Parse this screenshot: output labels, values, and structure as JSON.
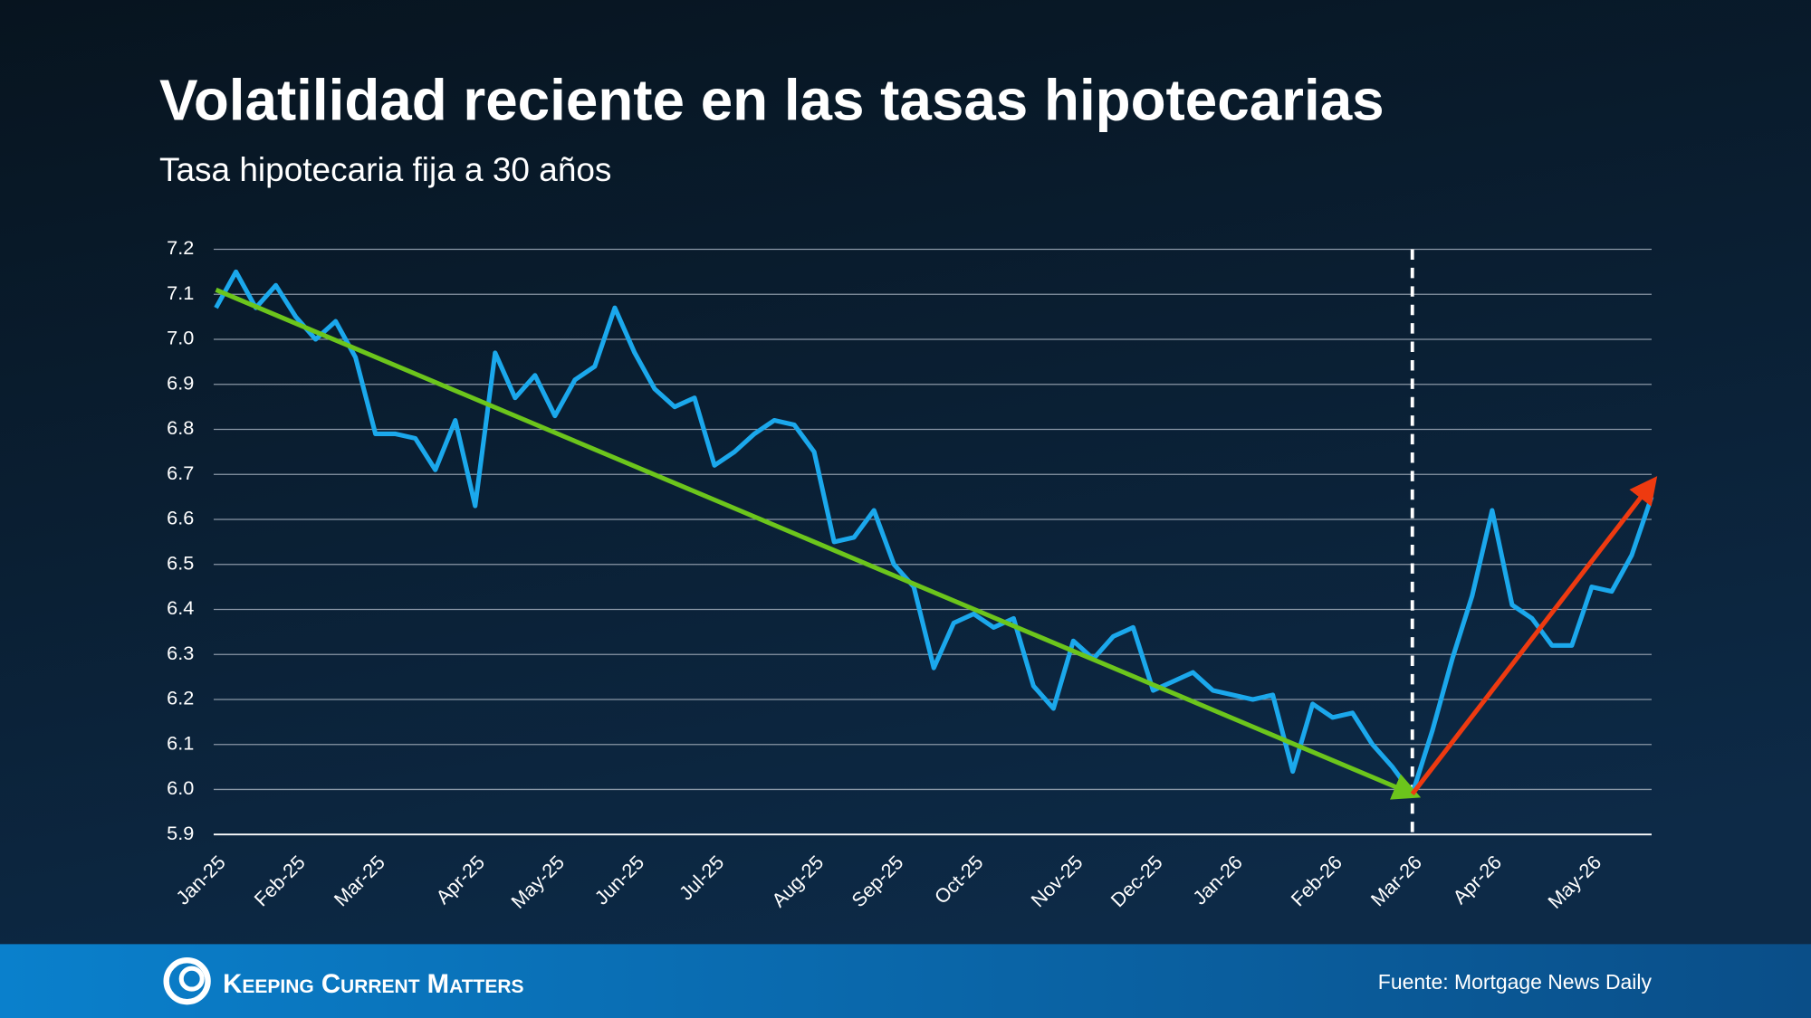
{
  "chart_data": {
    "type": "line",
    "title": "Volatilidad reciente en las tasas hipotecarias",
    "subtitle": "Tasa hipotecaria fija a 30 años",
    "source": "Fuente: Mortgage News Daily",
    "brand": "Keeping Current Matters",
    "categories": [
      "Jan-25",
      null,
      null,
      null,
      "Feb-25",
      null,
      null,
      null,
      "Mar-25",
      null,
      null,
      null,
      null,
      "Apr-25",
      null,
      null,
      null,
      "May-25",
      null,
      null,
      null,
      "Jun-25",
      null,
      null,
      null,
      "Jul-25",
      null,
      null,
      null,
      null,
      "Aug-25",
      null,
      null,
      null,
      "Sep-25",
      null,
      null,
      null,
      "Oct-25",
      null,
      null,
      null,
      null,
      "Nov-25",
      null,
      null,
      null,
      "Dec-25",
      null,
      null,
      null,
      "Jan-26",
      null,
      null,
      null,
      null,
      "Feb-26",
      null,
      null,
      null,
      "Mar-26",
      null,
      null,
      null,
      "Apr-26",
      null,
      null,
      null,
      null,
      "May-26",
      null,
      null,
      null
    ],
    "series": [
      {
        "name": "Tasa hipotecaria fija a 30 años",
        "color": "#1ba8ec",
        "values": [
          7.07,
          7.15,
          7.07,
          7.12,
          7.05,
          7.0,
          7.04,
          6.96,
          6.79,
          6.79,
          6.78,
          6.71,
          6.82,
          6.63,
          6.97,
          6.87,
          6.92,
          6.83,
          6.91,
          6.94,
          7.07,
          6.97,
          6.89,
          6.85,
          6.87,
          6.72,
          6.75,
          6.79,
          6.82,
          6.81,
          6.75,
          6.55,
          6.56,
          6.62,
          6.5,
          6.45,
          6.27,
          6.37,
          6.39,
          6.36,
          6.38,
          6.23,
          6.18,
          6.33,
          6.29,
          6.34,
          6.36,
          6.22,
          6.24,
          6.26,
          6.22,
          6.21,
          6.2,
          6.21,
          6.04,
          6.19,
          6.16,
          6.17,
          6.1,
          6.05,
          5.99,
          6.13,
          6.29,
          6.43,
          6.62,
          6.41,
          6.38,
          6.32,
          6.32,
          6.45,
          6.44,
          6.52,
          6.65
        ]
      }
    ],
    "trend_lines": [
      {
        "color": "#6cc51c",
        "from": [
          0,
          7.11
        ],
        "to": [
          60,
          5.99
        ]
      },
      {
        "color": "#ee3a10",
        "from": [
          60,
          5.99
        ],
        "to": [
          72,
          6.68
        ]
      }
    ],
    "reference_line_x": 60,
    "ylim": [
      5.9,
      7.2
    ],
    "yticks": [
      {
        "value": 5.9,
        "label": "5.9"
      },
      {
        "value": 6,
        "label": "6.0"
      },
      {
        "value": 6.1,
        "label": "6.1"
      },
      {
        "value": 6.2,
        "label": "6.2"
      },
      {
        "value": 6.3,
        "label": "6.3"
      },
      {
        "value": 6.4,
        "label": "6.4"
      },
      {
        "value": 6.5,
        "label": "6.5"
      },
      {
        "value": 6.6,
        "label": "6.6"
      },
      {
        "value": 6.7,
        "label": "6.7"
      },
      {
        "value": 6.8,
        "label": "6.8"
      },
      {
        "value": 6.9,
        "label": "6.9"
      },
      {
        "value": 7,
        "label": "7.0"
      },
      {
        "value": 7.1,
        "label": "7.1"
      },
      {
        "value": 7.2,
        "label": "7.2"
      }
    ],
    "grid": true
  }
}
